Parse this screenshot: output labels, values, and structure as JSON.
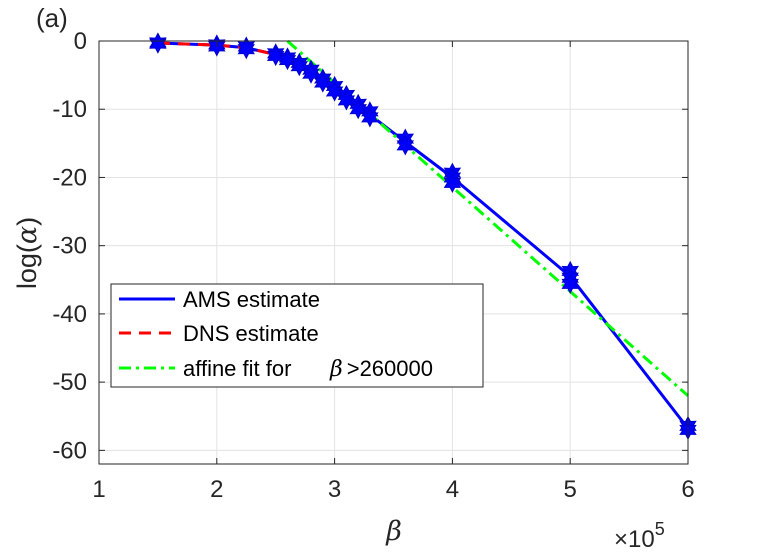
{
  "panel_label": "(a)",
  "chart_data": {
    "type": "line",
    "ylabel_text": "log(",
    "ylabel_symbol": "α",
    "ylabel_close": ")",
    "xlabel_symbol": "β",
    "x_multiplier": {
      "text": "×10",
      "exponent": "5"
    },
    "xlim": [
      1,
      6
    ],
    "ylim": [
      -62,
      0
    ],
    "x_ticks": [
      1,
      2,
      3,
      4,
      5,
      6
    ],
    "y_ticks": [
      0,
      -10,
      -20,
      -30,
      -40,
      -50,
      -60
    ],
    "grid": true,
    "legend_position": "lower-left",
    "series": [
      {
        "name": "AMS estimate",
        "style": "solid",
        "color": "#0000ff",
        "x": [
          1.5,
          2.0,
          2.25,
          2.5,
          2.6,
          2.7,
          2.8,
          2.9,
          3.0,
          3.1,
          3.2,
          3.3,
          3.6,
          4.0,
          5.0,
          6.0
        ],
        "y": [
          -0.3,
          -0.6,
          -1.0,
          -2.0,
          -2.6,
          -3.4,
          -4.5,
          -5.8,
          -7.0,
          -8.3,
          -9.6,
          -10.8,
          -14.8,
          -20.0,
          -34.5,
          -56.8
        ],
        "markers": [
          [
            1.5,
            -0.2
          ],
          [
            1.5,
            -0.4
          ],
          [
            2.0,
            -0.5
          ],
          [
            2.0,
            -0.8
          ],
          [
            2.25,
            -0.8
          ],
          [
            2.25,
            -1.2
          ],
          [
            2.5,
            -1.8
          ],
          [
            2.5,
            -2.2
          ],
          [
            2.6,
            -2.4
          ],
          [
            2.6,
            -2.8
          ],
          [
            2.7,
            -3.2
          ],
          [
            2.7,
            -3.7
          ],
          [
            2.8,
            -4.2
          ],
          [
            2.8,
            -4.8
          ],
          [
            2.9,
            -5.5
          ],
          [
            2.9,
            -6.1
          ],
          [
            3.0,
            -6.6
          ],
          [
            3.0,
            -7.4
          ],
          [
            3.1,
            -7.9
          ],
          [
            3.1,
            -8.7
          ],
          [
            3.2,
            -9.2
          ],
          [
            3.2,
            -10.0
          ],
          [
            3.3,
            -10.3
          ],
          [
            3.3,
            -11.2
          ],
          [
            3.6,
            -14.3
          ],
          [
            3.6,
            -15.3
          ],
          [
            4.0,
            -19.3
          ],
          [
            4.0,
            -20.0
          ],
          [
            4.0,
            -20.8
          ],
          [
            5.0,
            -33.7
          ],
          [
            5.0,
            -34.7
          ],
          [
            5.0,
            -35.6
          ],
          [
            6.0,
            -56.4
          ],
          [
            6.0,
            -57.0
          ]
        ]
      },
      {
        "name": "DNS estimate",
        "style": "dashed",
        "color": "#ff0000",
        "x": [
          1.5,
          2.0,
          2.25,
          2.5,
          2.6,
          2.7,
          2.8,
          2.9,
          3.0,
          3.1
        ],
        "y": [
          -0.3,
          -0.6,
          -1.0,
          -2.0,
          -2.6,
          -3.4,
          -4.5,
          -5.8,
          -7.0,
          -8.3
        ]
      },
      {
        "name": "affine fit for",
        "name_symbol": "β",
        "name_suffix": ">260000",
        "style": "dashdot",
        "color": "#00ff00",
        "x": [
          2.6,
          6.0
        ],
        "y": [
          0.0,
          -52.0
        ]
      }
    ]
  }
}
